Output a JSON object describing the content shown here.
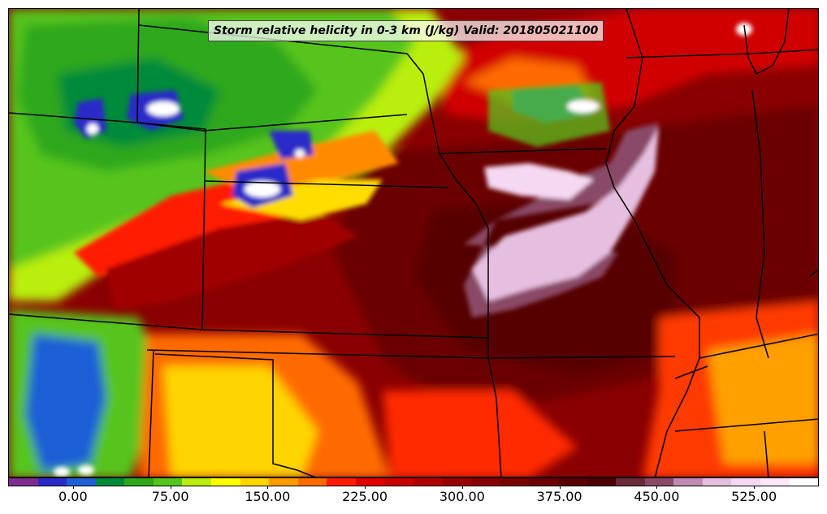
{
  "title": "Storm relative helicity in 0-3 km (J/kg) Valid: 201805021100",
  "colorbar": {
    "colors": [
      "#7e2d8e",
      "#2b2bc9",
      "#1f5fd6",
      "#008a3a",
      "#2ea81a",
      "#56c41e",
      "#b9ee10",
      "#ffff00",
      "#ffd500",
      "#ff9b00",
      "#ff6a00",
      "#ff1a00",
      "#e00000",
      "#c80000",
      "#b00000",
      "#980000",
      "#880000",
      "#7a0000",
      "#6a0000",
      "#5a0000",
      "#4c0000",
      "#6b2a3a",
      "#8a4a66",
      "#c08ab4",
      "#e6bfe0",
      "#f5d8f2",
      "#fae8f7",
      "#ffffff"
    ],
    "ticks": [
      {
        "label": "0.00",
        "value": 0
      },
      {
        "label": "75.00",
        "value": 75
      },
      {
        "label": "150.00",
        "value": 150
      },
      {
        "label": "225.00",
        "value": 225
      },
      {
        "label": "300.00",
        "value": 300
      },
      {
        "label": "375.00",
        "value": 375
      },
      {
        "label": "450.00",
        "value": 450
      },
      {
        "label": "525.00",
        "value": 525
      }
    ],
    "range": [
      -50,
      575
    ]
  }
}
